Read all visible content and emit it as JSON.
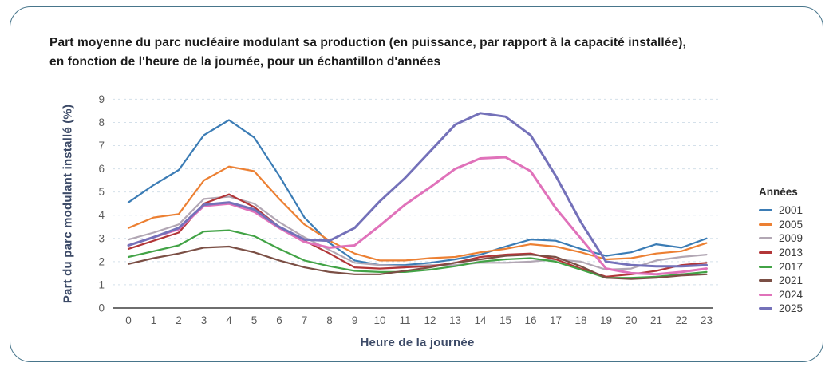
{
  "title": "Part moyenne du parc nucléaire modulant sa production (en puissance, par rapport à la capacité installée),\nen fonction de l'heure de la journée, pour un échantillon d'années",
  "card": {
    "border_color": "#47758b"
  },
  "colors": {
    "grid": "#d4e0ea",
    "axis_line": "#3f3f3f",
    "tick_label": "#5b5b5b",
    "axis_title": "#3c4a67"
  },
  "chart_data": {
    "type": "line",
    "title": "Part moyenne du parc nucléaire modulant sa production (en puissance, par rapport à la capacité installée), en fonction de l'heure de la journée, pour un échantillon d'années",
    "xlabel": "Heure de la journée",
    "ylabel": "Part du parc modulant installé (%)",
    "x": [
      0,
      1,
      2,
      3,
      4,
      5,
      6,
      7,
      8,
      9,
      10,
      11,
      12,
      13,
      14,
      15,
      16,
      17,
      18,
      19,
      20,
      21,
      22,
      23
    ],
    "ylim": [
      0,
      9
    ],
    "y_ticks": [
      0,
      1,
      2,
      3,
      4,
      5,
      6,
      7,
      8,
      9
    ],
    "grid": "horizontal-dashed",
    "legend_title": "Années",
    "legend_position": "right",
    "series": [
      {
        "name": "2001",
        "color": "#3b7cb5",
        "line_width": 2.2,
        "values": [
          4.55,
          5.3,
          5.95,
          7.45,
          8.1,
          7.35,
          5.7,
          3.9,
          2.8,
          2.05,
          1.85,
          1.85,
          1.95,
          2.1,
          2.3,
          2.65,
          2.95,
          2.9,
          2.55,
          2.25,
          2.4,
          2.75,
          2.6,
          3.0
        ]
      },
      {
        "name": "2005",
        "color": "#ec8033",
        "line_width": 2.2,
        "values": [
          3.45,
          3.9,
          4.05,
          5.5,
          6.1,
          5.9,
          4.7,
          3.6,
          2.9,
          2.35,
          2.05,
          2.05,
          2.15,
          2.2,
          2.4,
          2.55,
          2.75,
          2.65,
          2.4,
          2.1,
          2.15,
          2.35,
          2.45,
          2.8
        ]
      },
      {
        "name": "2009",
        "color": "#b2a7b4",
        "line_width": 2.2,
        "values": [
          2.95,
          3.25,
          3.6,
          4.7,
          4.8,
          4.5,
          3.7,
          3.05,
          2.5,
          1.95,
          1.85,
          1.8,
          1.85,
          1.85,
          1.95,
          1.95,
          2.0,
          2.1,
          2.0,
          1.65,
          1.7,
          2.05,
          2.2,
          2.3
        ]
      },
      {
        "name": "2013",
        "color": "#b23638",
        "line_width": 2.2,
        "values": [
          2.55,
          2.9,
          3.25,
          4.5,
          4.9,
          4.35,
          3.5,
          2.9,
          2.35,
          1.75,
          1.7,
          1.75,
          1.8,
          1.95,
          2.2,
          2.3,
          2.35,
          2.1,
          1.7,
          1.35,
          1.45,
          1.6,
          1.85,
          1.95
        ]
      },
      {
        "name": "2017",
        "color": "#42a346",
        "line_width": 2.2,
        "values": [
          2.2,
          2.45,
          2.7,
          3.3,
          3.35,
          3.1,
          2.55,
          2.05,
          1.8,
          1.6,
          1.55,
          1.55,
          1.65,
          1.8,
          2.0,
          2.1,
          2.15,
          2.0,
          1.65,
          1.3,
          1.3,
          1.35,
          1.45,
          1.55
        ]
      },
      {
        "name": "2021",
        "color": "#7b4f45",
        "line_width": 2.2,
        "values": [
          1.9,
          2.15,
          2.35,
          2.6,
          2.65,
          2.4,
          2.05,
          1.75,
          1.55,
          1.45,
          1.45,
          1.6,
          1.75,
          1.95,
          2.1,
          2.25,
          2.3,
          2.2,
          1.8,
          1.3,
          1.25,
          1.3,
          1.4,
          1.45
        ]
      },
      {
        "name": "2024",
        "color": "#e072ba",
        "line_width": 3,
        "values": [
          2.7,
          3.05,
          3.4,
          4.4,
          4.5,
          4.15,
          3.45,
          2.85,
          2.6,
          2.7,
          3.55,
          4.45,
          5.2,
          6.0,
          6.45,
          6.5,
          5.9,
          4.3,
          3.0,
          1.7,
          1.5,
          1.45,
          1.55,
          1.7
        ]
      },
      {
        "name": "2025",
        "color": "#7471b9",
        "line_width": 3,
        "values": [
          2.7,
          3.05,
          3.45,
          4.45,
          4.55,
          4.25,
          3.5,
          2.95,
          2.9,
          3.45,
          4.6,
          5.6,
          6.75,
          7.9,
          8.4,
          8.25,
          7.45,
          5.7,
          3.7,
          2.0,
          1.85,
          1.8,
          1.8,
          1.85
        ]
      }
    ]
  }
}
